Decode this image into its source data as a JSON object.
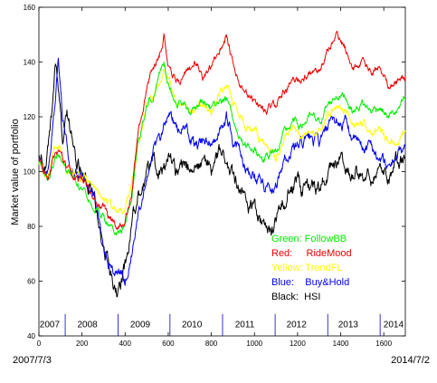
{
  "chart_data": {
    "type": "line",
    "title": "",
    "xlabel": "",
    "ylabel": "Market value of portfolio",
    "xlim": [
      0,
      1700
    ],
    "ylim": [
      40,
      160
    ],
    "x_ticks": [
      0,
      200,
      400,
      600,
      800,
      1000,
      1200,
      1400,
      1600
    ],
    "y_ticks": [
      40,
      60,
      80,
      100,
      120,
      140,
      160
    ],
    "start_date": "2007/7/3",
    "end_date": "2014/7/2",
    "year_labels": [
      {
        "label": "2007",
        "x": 50
      },
      {
        "label": "2008",
        "x": 225
      },
      {
        "label": "2009",
        "x": 470
      },
      {
        "label": "2010",
        "x": 710
      },
      {
        "label": "2011",
        "x": 955
      },
      {
        "label": "2012",
        "x": 1195
      },
      {
        "label": "2013",
        "x": 1435
      },
      {
        "label": "2014",
        "x": 1645
      }
    ],
    "year_boundaries": [
      122,
      367,
      608,
      852,
      1096,
      1340,
      1583
    ],
    "series": [
      {
        "name": "HSI",
        "legend": "Black:  HSI",
        "color": "#000000",
        "noise": 4.0,
        "x": [
          0,
          30,
          60,
          75,
          90,
          100,
          110,
          130,
          150,
          170,
          200,
          240,
          280,
          300,
          320,
          340,
          355,
          370,
          400,
          430,
          460,
          500,
          530,
          560,
          600,
          640,
          680,
          720,
          760,
          800,
          840,
          870,
          900,
          950,
          1000,
          1050,
          1080,
          1100,
          1140,
          1180,
          1220,
          1260,
          1300,
          1340,
          1380,
          1420,
          1460,
          1500,
          1540,
          1580,
          1620,
          1660,
          1700
        ],
        "y": [
          105,
          100,
          120,
          140,
          130,
          125,
          110,
          120,
          113,
          103,
          100,
          92,
          82,
          72,
          67,
          58,
          56,
          55,
          65,
          80,
          92,
          98,
          104,
          100,
          105,
          100,
          104,
          100,
          104,
          101,
          106,
          102,
          96,
          90,
          85,
          78,
          77,
          82,
          90,
          95,
          93,
          96,
          95,
          100,
          103,
          100,
          97,
          100,
          98,
          102,
          99,
          103,
          105
        ]
      },
      {
        "name": "Buy&Hold",
        "legend": "Blue:    Buy&Hold",
        "color": "#0000ee",
        "noise": 3.0,
        "x": [
          0,
          40,
          70,
          90,
          110,
          130,
          150,
          180,
          220,
          260,
          300,
          340,
          370,
          400,
          430,
          460,
          500,
          530,
          560,
          600,
          640,
          680,
          720,
          760,
          800,
          840,
          870,
          900,
          950,
          1000,
          1050,
          1100,
          1140,
          1180,
          1220,
          1260,
          1300,
          1340,
          1380,
          1420,
          1460,
          1500,
          1540,
          1580,
          1620,
          1660,
          1700
        ],
        "y": [
          105,
          100,
          122,
          140,
          120,
          112,
          100,
          98,
          95,
          90,
          72,
          63,
          63,
          60,
          70,
          85,
          100,
          108,
          110,
          122,
          115,
          115,
          110,
          110,
          112,
          115,
          120,
          112,
          103,
          100,
          95,
          95,
          105,
          108,
          110,
          112,
          110,
          115,
          118,
          118,
          112,
          108,
          110,
          105,
          102,
          106,
          110
        ]
      },
      {
        "name": "TrendFL",
        "legend": "Yellow: TrendFL",
        "color": "#ffff00",
        "noise": 2.0,
        "x": [
          0,
          40,
          70,
          100,
          130,
          160,
          200,
          240,
          280,
          310,
          340,
          370,
          400,
          430,
          460,
          500,
          530,
          560,
          580,
          600,
          640,
          680,
          720,
          760,
          800,
          840,
          870,
          900,
          950,
          1000,
          1050,
          1100,
          1140,
          1180,
          1220,
          1260,
          1300,
          1340,
          1380,
          1420,
          1460,
          1500,
          1540,
          1580,
          1620,
          1660,
          1700
        ],
        "y": [
          104,
          98,
          108,
          110,
          100,
          98,
          97,
          96,
          92,
          90,
          86,
          85,
          87,
          95,
          110,
          125,
          128,
          132,
          138,
          134,
          125,
          125,
          122,
          125,
          122,
          128,
          132,
          125,
          118,
          115,
          110,
          105,
          112,
          115,
          113,
          114,
          114,
          120,
          124,
          122,
          116,
          118,
          114,
          116,
          112,
          110,
          115
        ]
      },
      {
        "name": "FollowBB",
        "legend": "Green: FollowBB",
        "color": "#00ee00",
        "noise": 2.0,
        "x": [
          0,
          40,
          70,
          100,
          130,
          160,
          200,
          240,
          280,
          310,
          340,
          370,
          400,
          430,
          460,
          500,
          530,
          560,
          580,
          600,
          640,
          680,
          720,
          760,
          800,
          840,
          870,
          900,
          950,
          1000,
          1050,
          1100,
          1140,
          1180,
          1220,
          1260,
          1300,
          1340,
          1380,
          1420,
          1460,
          1500,
          1540,
          1580,
          1620,
          1660,
          1700
        ],
        "y": [
          104,
          96,
          104,
          106,
          100,
          97,
          95,
          90,
          86,
          82,
          78,
          77,
          80,
          90,
          110,
          125,
          128,
          135,
          140,
          133,
          125,
          124,
          122,
          126,
          123,
          124,
          127,
          118,
          110,
          108,
          105,
          108,
          114,
          118,
          117,
          120,
          118,
          124,
          128,
          128,
          122,
          125,
          122,
          124,
          120,
          122,
          126
        ]
      },
      {
        "name": "RideMood",
        "legend": "Red:     RideMood",
        "color": "#ee0000",
        "noise": 2.0,
        "x": [
          0,
          40,
          70,
          100,
          130,
          160,
          200,
          240,
          280,
          310,
          340,
          370,
          400,
          430,
          460,
          500,
          530,
          560,
          580,
          600,
          640,
          680,
          720,
          760,
          800,
          840,
          870,
          900,
          950,
          1000,
          1050,
          1100,
          1140,
          1180,
          1220,
          1260,
          1300,
          1340,
          1380,
          1420,
          1460,
          1500,
          1540,
          1580,
          1620,
          1660,
          1700
        ],
        "y": [
          104,
          97,
          106,
          108,
          100,
          98,
          97,
          92,
          88,
          85,
          82,
          80,
          83,
          92,
          115,
          130,
          138,
          143,
          150,
          140,
          133,
          135,
          140,
          135,
          137,
          145,
          150,
          138,
          128,
          126,
          122,
          125,
          130,
          133,
          134,
          136,
          135,
          144,
          150,
          145,
          138,
          140,
          136,
          137,
          132,
          133,
          135
        ]
      }
    ]
  }
}
